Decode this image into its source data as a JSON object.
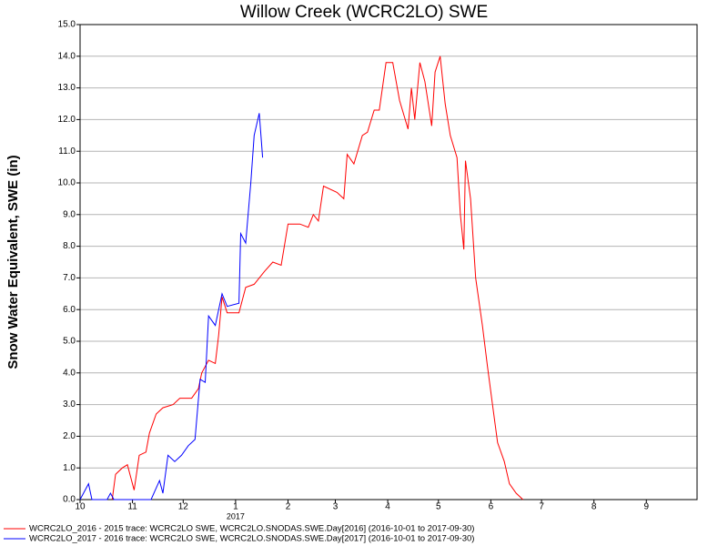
{
  "chart_data": {
    "type": "line",
    "title": "Willow Creek (WCRC2LO) SWE",
    "y_label": "Snow Water Equivalent, SWE (in)",
    "x_annotation": "2017",
    "xlim": [
      0,
      365
    ],
    "xticks": [
      {
        "value": 0,
        "label": "10"
      },
      {
        "value": 31,
        "label": "11"
      },
      {
        "value": 61,
        "label": "12"
      },
      {
        "value": 92,
        "label": "1"
      },
      {
        "value": 123,
        "label": "2"
      },
      {
        "value": 151,
        "label": "3"
      },
      {
        "value": 182,
        "label": "4"
      },
      {
        "value": 212,
        "label": "5"
      },
      {
        "value": 243,
        "label": "6"
      },
      {
        "value": 273,
        "label": "7"
      },
      {
        "value": 304,
        "label": "8"
      },
      {
        "value": 335,
        "label": "9"
      }
    ],
    "ylim": [
      0,
      15
    ],
    "yticks": [
      {
        "value": 0,
        "label": "0.0"
      },
      {
        "value": 1,
        "label": "1.0"
      },
      {
        "value": 2,
        "label": "2.0"
      },
      {
        "value": 3,
        "label": "3.0"
      },
      {
        "value": 4,
        "label": "4.0"
      },
      {
        "value": 5,
        "label": "5.0"
      },
      {
        "value": 6,
        "label": "6.0"
      },
      {
        "value": 7,
        "label": "7.0"
      },
      {
        "value": 8,
        "label": "8.0"
      },
      {
        "value": 9,
        "label": "9.0"
      },
      {
        "value": 10,
        "label": "10.0"
      },
      {
        "value": 11,
        "label": "11.0"
      },
      {
        "value": 12,
        "label": "12.0"
      },
      {
        "value": 13,
        "label": "13.0"
      },
      {
        "value": 14,
        "label": "14.0"
      },
      {
        "value": 15,
        "label": "15.0"
      }
    ],
    "grid": true,
    "series": [
      {
        "name": "WCRC2LO_2016 - 2015 trace: WCRC2LO SWE, WCRC2LO.SNODAS.SWE.Day[2016] (2016-10-01 to 2017-09-30)",
        "color": "#ff0000",
        "x": [
          19,
          21,
          25,
          28,
          32,
          35,
          39,
          41,
          45,
          49,
          55,
          59,
          66,
          70,
          72,
          76,
          80,
          82,
          84,
          87,
          94,
          98,
          103,
          109,
          114,
          119,
          123,
          130,
          135,
          138,
          141,
          144,
          152,
          156,
          158,
          162,
          167,
          170,
          174,
          177,
          181,
          185,
          189,
          194,
          196,
          198,
          201,
          204,
          208,
          210,
          213,
          216,
          219,
          223,
          225,
          227,
          228,
          231,
          234,
          238,
          241,
          244,
          247,
          251,
          254,
          258,
          262
        ],
        "values": [
          0,
          0.8,
          1.0,
          1.1,
          0.3,
          1.4,
          1.5,
          2.1,
          2.7,
          2.9,
          3.0,
          3.2,
          3.2,
          3.5,
          4.0,
          4.4,
          4.3,
          5.2,
          6.4,
          5.9,
          5.9,
          6.7,
          6.8,
          7.2,
          7.5,
          7.4,
          8.7,
          8.7,
          8.6,
          9.0,
          8.8,
          9.9,
          9.7,
          9.5,
          10.9,
          10.6,
          11.5,
          11.6,
          12.3,
          12.3,
          13.8,
          13.8,
          12.6,
          11.7,
          13.0,
          12.0,
          13.8,
          13.2,
          11.8,
          13.5,
          14.0,
          12.5,
          11.5,
          10.8,
          9.0,
          7.9,
          10.7,
          9.5,
          7.0,
          5.5,
          4.2,
          3.0,
          1.8,
          1.2,
          0.5,
          0.2,
          0
        ]
      },
      {
        "name": "WCRC2LO_2017 - 2016 trace: WCRC2LO SWE, WCRC2LO.SNODAS.SWE.Day[2017] (2016-10-01 to 2017-09-30)",
        "color": "#0000ff",
        "x": [
          0,
          5,
          7,
          16,
          18,
          20,
          42,
          47,
          49,
          52,
          56,
          60,
          64,
          68,
          71,
          74,
          76,
          80,
          84,
          87,
          94,
          95,
          98,
          101,
          103,
          106,
          108
        ],
        "values": [
          0,
          0.5,
          0,
          0,
          0.2,
          0,
          0,
          0.6,
          0.2,
          1.4,
          1.2,
          1.4,
          1.7,
          1.9,
          3.8,
          3.7,
          5.8,
          5.5,
          6.5,
          6.1,
          6.2,
          8.4,
          8.1,
          10.0,
          11.5,
          12.2,
          10.8
        ]
      }
    ]
  }
}
